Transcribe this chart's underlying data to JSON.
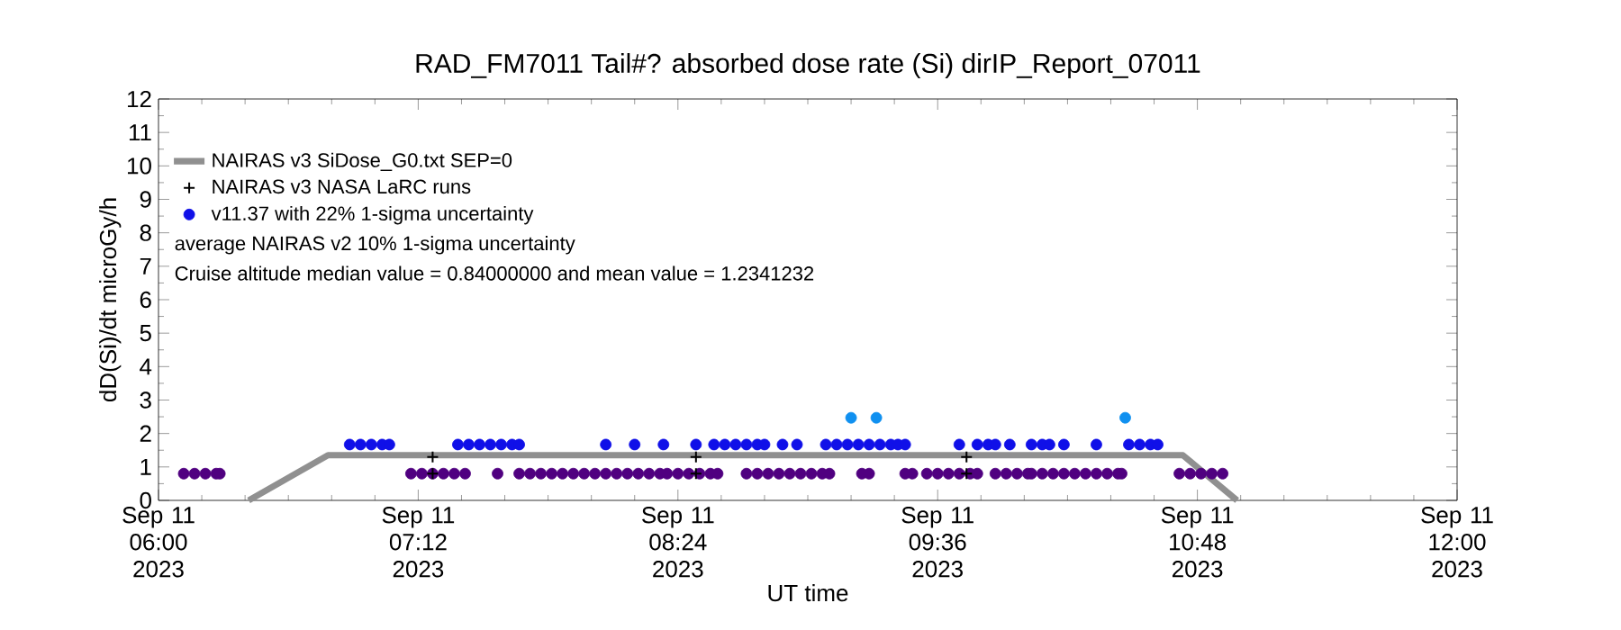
{
  "chart_data": {
    "type": "scatter",
    "title": "RAD_FM7011 Tail#? absorbed dose rate (Si) dirIP_Report_07011",
    "xlabel": "UT time",
    "ylabel": "dD(Si)/dt microGy/h",
    "xlim": [
      "2023-09-11T06:00",
      "2023-09-11T12:00"
    ],
    "xticks": [
      {
        "value": "2023-09-11T06:00",
        "label": "Sep 11 06:00 2023"
      },
      {
        "value": "2023-09-11T07:12",
        "label": "Sep 11 07:12 2023"
      },
      {
        "value": "2023-09-11T08:24",
        "label": "Sep 11 08:24 2023"
      },
      {
        "value": "2023-09-11T09:36",
        "label": "Sep 11 09:36 2023"
      },
      {
        "value": "2023-09-11T10:48",
        "label": "Sep 11 10:48 2023"
      },
      {
        "value": "2023-09-11T12:00",
        "label": "Sep 11 12:00 2023"
      }
    ],
    "ylim": [
      0,
      12
    ],
    "yticks": [
      0,
      1,
      2,
      3,
      4,
      5,
      6,
      7,
      8,
      9,
      10,
      11,
      12
    ],
    "legend": "top left",
    "annotations": [
      "average NAIRAS v2 10% 1-sigma uncertainty",
      "Cruise altitude median value = 0.84000000 and mean value = 1.2341232"
    ],
    "series": [
      {
        "name": "NAIRAS v3 SiDose_G0.txt SEP=0",
        "type": "line",
        "marker": "none",
        "color": "#909090",
        "x": [
          "2023-09-11T06:25",
          "2023-09-11T06:47",
          "2023-09-11T10:44",
          "2023-09-11T10:59"
        ],
        "values": [
          0,
          1.35,
          1.35,
          0
        ]
      },
      {
        "name": "NAIRAS v3 NASA LaRC runs",
        "marker": "cross",
        "color": "#000000",
        "x": [
          "2023-09-11T07:16",
          "2023-09-11T07:16",
          "2023-09-11T08:29",
          "2023-09-11T08:29",
          "2023-09-11T09:44",
          "2023-09-11T09:44"
        ],
        "values": [
          1.3,
          0.8,
          1.3,
          0.8,
          1.3,
          0.8
        ]
      },
      {
        "name": "v11.37 with 22% 1-sigma uncertainty",
        "marker": "circle",
        "color": "#1010e8",
        "x": [
          "2023-09-11T06:53",
          "2023-09-11T06:56",
          "2023-09-11T06:59",
          "2023-09-11T07:02",
          "2023-09-11T07:04",
          "2023-09-11T07:23",
          "2023-09-11T07:26",
          "2023-09-11T07:29",
          "2023-09-11T07:32",
          "2023-09-11T07:35",
          "2023-09-11T07:38",
          "2023-09-11T07:40",
          "2023-09-11T08:04",
          "2023-09-11T08:12",
          "2023-09-11T08:20",
          "2023-09-11T08:29",
          "2023-09-11T08:34",
          "2023-09-11T08:37",
          "2023-09-11T08:40",
          "2023-09-11T08:43",
          "2023-09-11T08:46",
          "2023-09-11T08:48",
          "2023-09-11T08:53",
          "2023-09-11T08:57",
          "2023-09-11T09:05",
          "2023-09-11T09:08",
          "2023-09-11T09:11",
          "2023-09-11T09:14",
          "2023-09-11T09:17",
          "2023-09-11T09:20",
          "2023-09-11T09:23",
          "2023-09-11T09:25",
          "2023-09-11T09:27",
          "2023-09-11T09:42",
          "2023-09-11T09:47",
          "2023-09-11T09:50",
          "2023-09-11T09:52",
          "2023-09-11T09:56",
          "2023-09-11T10:02",
          "2023-09-11T10:05",
          "2023-09-11T10:07",
          "2023-09-11T10:11",
          "2023-09-11T10:20",
          "2023-09-11T10:29",
          "2023-09-11T10:32",
          "2023-09-11T10:35",
          "2023-09-11T10:37"
        ],
        "values": [
          1.67,
          1.67,
          1.67,
          1.67,
          1.67,
          1.67,
          1.67,
          1.67,
          1.67,
          1.67,
          1.67,
          1.67,
          1.67,
          1.67,
          1.67,
          1.67,
          1.67,
          1.67,
          1.67,
          1.67,
          1.67,
          1.67,
          1.67,
          1.67,
          1.67,
          1.67,
          1.67,
          1.67,
          1.67,
          1.67,
          1.67,
          1.67,
          1.67,
          1.67,
          1.67,
          1.67,
          1.67,
          1.67,
          1.67,
          1.67,
          1.67,
          1.67,
          1.67,
          1.67,
          1.67,
          1.67,
          1.67
        ]
      },
      {
        "marker": "circle",
        "color": "#500080",
        "x": [
          "2023-09-11T06:07",
          "2023-09-11T06:10",
          "2023-09-11T06:13",
          "2023-09-11T06:16",
          "2023-09-11T06:17",
          "2023-09-11T07:10",
          "2023-09-11T07:13",
          "2023-09-11T07:16",
          "2023-09-11T07:19",
          "2023-09-11T07:22",
          "2023-09-11T07:25",
          "2023-09-11T07:34",
          "2023-09-11T07:40",
          "2023-09-11T07:43",
          "2023-09-11T07:46",
          "2023-09-11T07:49",
          "2023-09-11T07:52",
          "2023-09-11T07:55",
          "2023-09-11T07:58",
          "2023-09-11T08:01",
          "2023-09-11T08:04",
          "2023-09-11T08:07",
          "2023-09-11T08:10",
          "2023-09-11T08:13",
          "2023-09-11T08:16",
          "2023-09-11T08:19",
          "2023-09-11T08:21",
          "2023-09-11T08:24",
          "2023-09-11T08:27",
          "2023-09-11T08:30",
          "2023-09-11T08:33",
          "2023-09-11T08:35",
          "2023-09-11T08:43",
          "2023-09-11T08:46",
          "2023-09-11T08:49",
          "2023-09-11T08:52",
          "2023-09-11T08:55",
          "2023-09-11T08:58",
          "2023-09-11T09:01",
          "2023-09-11T09:04",
          "2023-09-11T09:06",
          "2023-09-11T09:15",
          "2023-09-11T09:17",
          "2023-09-11T09:27",
          "2023-09-11T09:29",
          "2023-09-11T09:33",
          "2023-09-11T09:36",
          "2023-09-11T09:39",
          "2023-09-11T09:42",
          "2023-09-11T09:45",
          "2023-09-11T09:47",
          "2023-09-11T09:52",
          "2023-09-11T09:55",
          "2023-09-11T09:58",
          "2023-09-11T10:01",
          "2023-09-11T10:02",
          "2023-09-11T10:05",
          "2023-09-11T10:08",
          "2023-09-11T10:11",
          "2023-09-11T10:14",
          "2023-09-11T10:17",
          "2023-09-11T10:20",
          "2023-09-11T10:23",
          "2023-09-11T10:26",
          "2023-09-11T10:27",
          "2023-09-11T10:43",
          "2023-09-11T10:46",
          "2023-09-11T10:49",
          "2023-09-11T10:52",
          "2023-09-11T10:55"
        ],
        "values": [
          0.8,
          0.8,
          0.8,
          0.8,
          0.8,
          0.8,
          0.8,
          0.8,
          0.8,
          0.8,
          0.8,
          0.8,
          0.8,
          0.8,
          0.8,
          0.8,
          0.8,
          0.8,
          0.8,
          0.8,
          0.8,
          0.8,
          0.8,
          0.8,
          0.8,
          0.8,
          0.8,
          0.8,
          0.8,
          0.8,
          0.8,
          0.8,
          0.8,
          0.8,
          0.8,
          0.8,
          0.8,
          0.8,
          0.8,
          0.8,
          0.8,
          0.8,
          0.8,
          0.8,
          0.8,
          0.8,
          0.8,
          0.8,
          0.8,
          0.8,
          0.8,
          0.8,
          0.8,
          0.8,
          0.8,
          0.8,
          0.8,
          0.8,
          0.8,
          0.8,
          0.8,
          0.8,
          0.8,
          0.8,
          0.8,
          0.8,
          0.8,
          0.8,
          0.8,
          0.8
        ]
      },
      {
        "marker": "circle",
        "color": "#1090f0",
        "x": [
          "2023-09-11T09:12",
          "2023-09-11T09:19",
          "2023-09-11T10:28"
        ],
        "values": [
          2.47,
          2.47,
          2.47
        ]
      }
    ]
  }
}
